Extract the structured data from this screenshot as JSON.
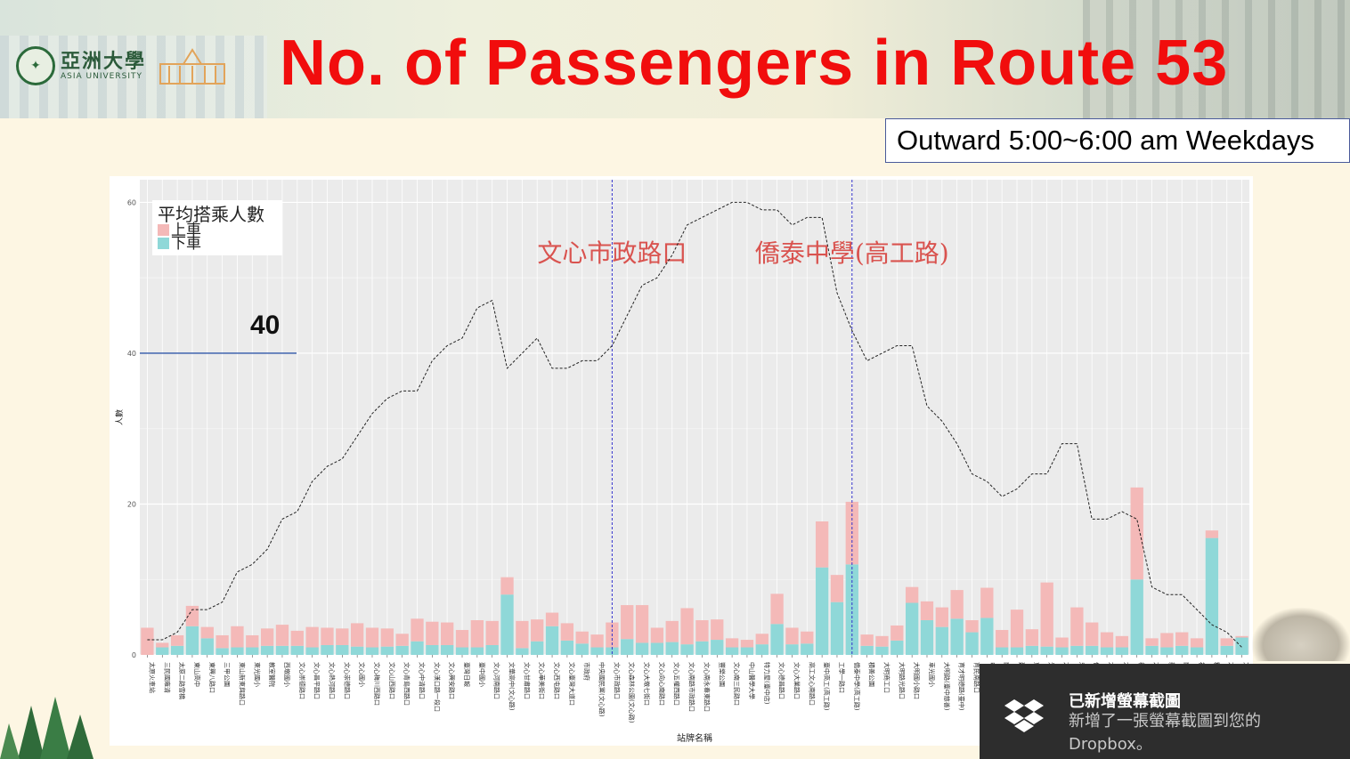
{
  "header": {
    "title": "No. of Passengers in Route 53",
    "subtitle": "Outward 5:00~6:00 am Weekdays",
    "logo_cn": "亞洲大學",
    "logo_en": "ASIA UNIVERSITY"
  },
  "chart_data": {
    "type": "bar",
    "stacked": true,
    "ylabel": "人數",
    "xlabel": "站牌名稱",
    "ylim": [
      0,
      63
    ],
    "yticks": [
      0,
      20,
      40,
      60
    ],
    "grid": true,
    "legend_position": "top-left",
    "legend_title": "平均搭乘人數",
    "categories": [
      "太原火車站",
      "三民國雍清",
      "太原二路雪橋",
      "東山高中",
      "東興八路口",
      "三甲公園",
      "東山新東與路口",
      "東光國小",
      "教室醫院",
      "西墩國小",
      "文心崇德路口",
      "文心昌平路口",
      "文心熱河路口",
      "文心崇德路口",
      "文心國小",
      "文心梅川西路口",
      "文心山西路口",
      "文心青島西路口",
      "文心中清路口",
      "文心漢口路一段口",
      "文心興安路口",
      "臺灣日報",
      "臺中國小",
      "文心河南路口",
      "文華高中(文心路)",
      "文心甘肅路口",
      "文心華美街口",
      "文心西屯路口",
      "文心臺灣大道口",
      "市政府",
      "中央國民黨(文心路)",
      "文心市政路口",
      "文心森林公園(文心路)",
      "文心大墩七街口",
      "文心向心南路口",
      "文心五權西路口",
      "文心南路市政路口",
      "文心南永春東路口",
      "豐樂公園",
      "文心南三民路口",
      "中山醫學大學",
      "特力屋(臺中店)",
      "文心德昌路口",
      "文心大業路口",
      "高工文心南路口",
      "臺中高工(高工路)",
      "工學一路口",
      "僑泰中學(高工路)",
      "積善公園",
      "大明商工口",
      "大明路光路口",
      "大明國小路口",
      "車光國小",
      "大明路(臺中慈善)",
      "育才明德路(臺中)",
      "育民南路口",
      "甲工公園",
      "南屯路口",
      "建功路口",
      "東光路口",
      "光明國中",
      "大明路口",
      "忠明南路口",
      "仁和路口",
      "大慶路口",
      "大新路口",
      "福田路口",
      "大同路口",
      "新興路口",
      "南陽路口",
      "福星路口",
      "精武路口",
      "大新國小",
      "文心路底"
    ],
    "series": [
      {
        "name": "上車",
        "color": "#f4b9b8",
        "values": [
          3.6,
          0.6,
          1.4,
          2.7,
          1.5,
          1.7,
          2.8,
          1.6,
          2.3,
          2.8,
          2.0,
          2.7,
          2.3,
          2.2,
          3.1,
          2.6,
          2.4,
          1.6,
          3.0,
          3.1,
          3.0,
          2.3,
          3.6,
          3.2,
          2.3,
          3.6,
          2.9,
          1.8,
          2.3,
          1.6,
          1.7,
          3.3,
          4.5,
          5.0,
          2.0,
          2.8,
          4.8,
          2.8,
          2.7,
          1.2,
          1.0,
          1.4,
          4.0,
          2.2,
          1.6,
          6.1,
          3.6,
          8.3,
          1.5,
          1.4,
          2.0,
          2.1,
          2.5,
          2.6,
          3.8,
          1.6,
          4.0,
          2.3,
          5.0,
          2.2,
          8.5,
          1.3,
          5.1,
          3.1,
          2.0,
          1.5,
          12.2,
          1.0,
          1.9,
          1.8,
          1.2,
          1.0,
          1.0,
          0.2
        ]
      },
      {
        "name": "下車",
        "color": "#8fd8d8",
        "values": [
          0.0,
          1.0,
          1.2,
          3.8,
          2.2,
          0.9,
          1.0,
          1.0,
          1.2,
          1.2,
          1.2,
          1.0,
          1.3,
          1.3,
          1.1,
          1.0,
          1.1,
          1.2,
          1.8,
          1.3,
          1.3,
          1.0,
          1.0,
          1.3,
          8.0,
          0.9,
          1.8,
          3.8,
          1.9,
          1.5,
          1.0,
          1.0,
          2.1,
          1.6,
          1.6,
          1.7,
          1.4,
          1.8,
          2.0,
          1.0,
          1.0,
          1.4,
          4.1,
          1.4,
          1.5,
          11.6,
          7.0,
          12.0,
          1.2,
          1.1,
          1.9,
          6.9,
          4.6,
          3.7,
          4.8,
          3.0,
          4.9,
          1.0,
          1.0,
          1.2,
          1.1,
          1.0,
          1.2,
          1.2,
          1.0,
          1.0,
          10.0,
          1.2,
          1.0,
          1.2,
          1.0,
          15.5,
          1.2,
          2.3
        ]
      }
    ],
    "line": {
      "name": "cumulative",
      "style": "dashed",
      "values": [
        2,
        2,
        3,
        6,
        6,
        7,
        11,
        12,
        14,
        18,
        19,
        23,
        25,
        26,
        29,
        32,
        34,
        35,
        35,
        39,
        41,
        42,
        46,
        47,
        38,
        40,
        42,
        38,
        38,
        39,
        39,
        41,
        45,
        49,
        50,
        53,
        57,
        58,
        59,
        60,
        60,
        59,
        59,
        57,
        58,
        58,
        48,
        43,
        39,
        40,
        41,
        41,
        33,
        31,
        28,
        24,
        23,
        21,
        22,
        24,
        24,
        28,
        28,
        18,
        18,
        19,
        18,
        9,
        8,
        8,
        6,
        4,
        3,
        1
      ]
    },
    "hline": {
      "value": 40,
      "label": "40"
    },
    "vlines": [
      {
        "index": 31,
        "label": "文心市政路口"
      },
      {
        "index": 47,
        "label": "僑泰中學(高工路)"
      }
    ]
  },
  "legend": {
    "title": "平均搭乘人數",
    "items": [
      "上車",
      "下車"
    ]
  },
  "toast": {
    "title": "已新增螢幕截圖",
    "body": "新增了一張螢幕截圖到您的 Dropbox。"
  }
}
